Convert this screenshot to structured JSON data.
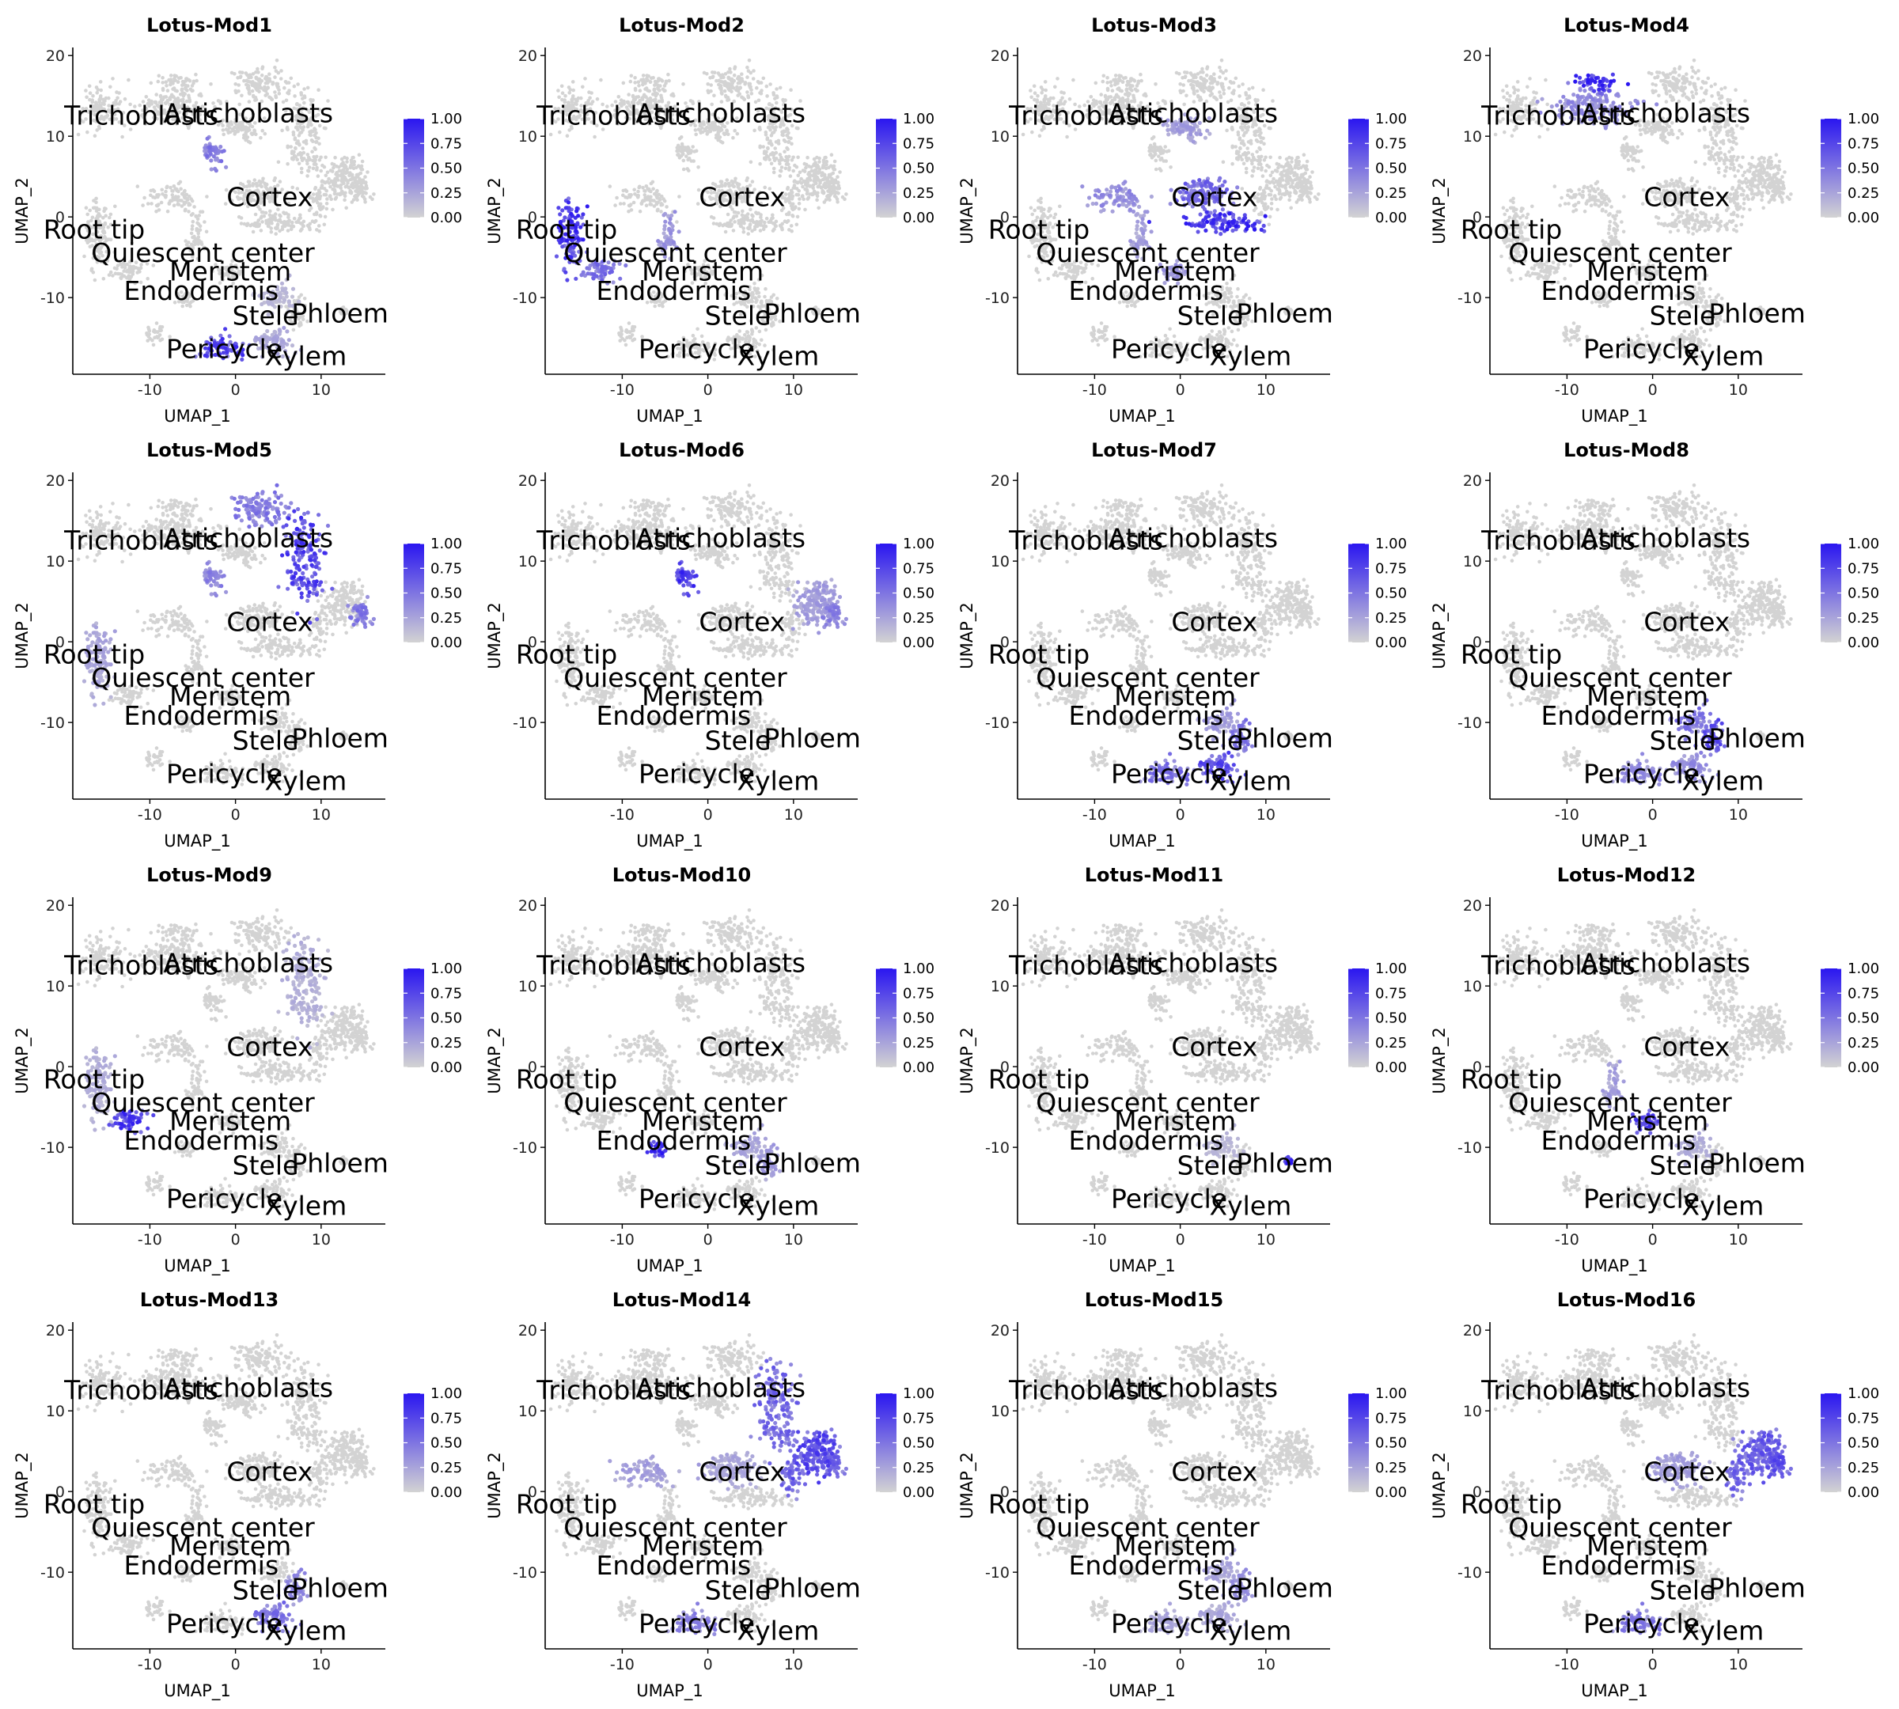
{
  "chart_data": {
    "type": "scatter",
    "layout_grid": {
      "rows": 4,
      "cols": 4
    },
    "xlabel": "UMAP_1",
    "ylabel": "UMAP_2",
    "xlim": [
      -19,
      17.5
    ],
    "ylim": [
      -19.5,
      21
    ],
    "xticks": [
      -10,
      0,
      10
    ],
    "xtick_labels": [
      "-10",
      "0",
      "10"
    ],
    "yticks": [
      -10,
      0,
      10,
      20
    ],
    "ytick_labels": [
      "-10",
      "0",
      "10",
      "20"
    ],
    "colorbar": {
      "min": 0,
      "max": 1,
      "ticks": [
        "0.00",
        "0.25",
        "0.50",
        "0.75",
        "1.00"
      ],
      "low_color": "#d3d3d3",
      "high_color": "#2a16f0"
    },
    "cluster_labels": [
      {
        "text": "Trichoblasts",
        "x": -11,
        "y": 12.5
      },
      {
        "text": "Atrichoblasts",
        "x": 1.5,
        "y": 12.8
      },
      {
        "text": "Cortex",
        "x": 4,
        "y": 2.4
      },
      {
        "text": "Root tip",
        "x": -16.5,
        "y": -1.6
      },
      {
        "text": "Quiescent center",
        "x": -3.8,
        "y": -4.5
      },
      {
        "text": "Meristem",
        "x": -0.6,
        "y": -6.8
      },
      {
        "text": "Endodermis",
        "x": -4,
        "y": -9.2
      },
      {
        "text": "Stele",
        "x": 3.5,
        "y": -12.3
      },
      {
        "text": "Phloem",
        "x": 12.2,
        "y": -12
      },
      {
        "text": "Pericycle",
        "x": -1.3,
        "y": -16.4
      },
      {
        "text": "Xylem",
        "x": 8.2,
        "y": -17.3
      }
    ],
    "clusters": [
      {
        "id": "triL",
        "cx": -15.5,
        "cy": 13.5,
        "rx": 2.6,
        "ry": 2.6,
        "n": 110
      },
      {
        "id": "triR",
        "cx": -7,
        "cy": 13.5,
        "rx": 4.5,
        "ry": 2.4,
        "n": 170
      },
      {
        "id": "tri_up",
        "cx": -6.5,
        "cy": 16.5,
        "rx": 2,
        "ry": 1.2,
        "n": 50
      },
      {
        "id": "atri_top",
        "cx": 3,
        "cy": 16.5,
        "rx": 3.5,
        "ry": 2.2,
        "n": 120
      },
      {
        "id": "atri_right",
        "cx": 8,
        "cy": 10.5,
        "rx": 2.3,
        "ry": 5.5,
        "n": 180
      },
      {
        "id": "atri_mid",
        "cx": 0.5,
        "cy": 11,
        "rx": 2.5,
        "ry": 1.6,
        "n": 90
      },
      {
        "id": "outer_right",
        "cx": 12.5,
        "cy": 5,
        "rx": 2.8,
        "ry": 2.8,
        "n": 150
      },
      {
        "id": "right_edge",
        "cx": 14.5,
        "cy": 3.5,
        "rx": 1.3,
        "ry": 1.4,
        "n": 60
      },
      {
        "id": "mid_small",
        "cx": -2.5,
        "cy": 8,
        "rx": 1.3,
        "ry": 1.8,
        "n": 50
      },
      {
        "id": "cortex",
        "cx": 3,
        "cy": 2.8,
        "rx": 3.2,
        "ry": 1.9,
        "n": 130
      },
      {
        "id": "cortex_low",
        "cx": 5,
        "cy": -0.8,
        "rx": 4.5,
        "ry": 1.2,
        "n": 110
      },
      {
        "id": "left_mid",
        "cx": -7,
        "cy": 2.3,
        "rx": 3.5,
        "ry": 1.6,
        "n": 90
      },
      {
        "id": "roottip",
        "cx": -16,
        "cy": -2,
        "rx": 1.5,
        "ry": 4.2,
        "n": 120
      },
      {
        "id": "qc",
        "cx": -12.5,
        "cy": -6.5,
        "rx": 2.3,
        "ry": 1.3,
        "n": 60
      },
      {
        "id": "center_col",
        "cx": -4.5,
        "cy": -2,
        "rx": 1,
        "ry": 2.8,
        "n": 50
      },
      {
        "id": "meristem",
        "cx": -1,
        "cy": -6.8,
        "rx": 1.6,
        "ry": 1.1,
        "n": 40
      },
      {
        "id": "endo",
        "cx": -6,
        "cy": -10.5,
        "rx": 1.1,
        "ry": 1.3,
        "n": 25
      },
      {
        "id": "stele",
        "cx": 5,
        "cy": -10,
        "rx": 2.3,
        "ry": 1.8,
        "n": 70
      },
      {
        "id": "phloem",
        "cx": 7,
        "cy": -12,
        "rx": 1.3,
        "ry": 2.2,
        "n": 50
      },
      {
        "id": "phloem_pt",
        "cx": 12.5,
        "cy": -11.8,
        "rx": 0.55,
        "ry": 0.55,
        "n": 14
      },
      {
        "id": "pericycle",
        "cx": -1.5,
        "cy": -16.3,
        "rx": 2.6,
        "ry": 1.3,
        "n": 80
      },
      {
        "id": "xylem",
        "cx": 4.5,
        "cy": -15.5,
        "rx": 2.2,
        "ry": 1.8,
        "n": 70
      },
      {
        "id": "low_small",
        "cx": -9.5,
        "cy": -14.5,
        "rx": 1.5,
        "ry": 1.2,
        "n": 30
      },
      {
        "id": "upper_right_tail",
        "cx": 10,
        "cy": 2,
        "rx": 1.2,
        "ry": 2.5,
        "n": 50
      }
    ],
    "panels": [
      {
        "title": "Lotus-Mod1",
        "highlight": {
          "pericycle": 0.8,
          "mid_small": 0.5,
          "xylem": 0.25,
          "stele": 0.15
        }
      },
      {
        "title": "Lotus-Mod2",
        "highlight": {
          "roottip": 0.85,
          "qc": 0.55,
          "center_col": 0.35
        }
      },
      {
        "title": "Lotus-Mod3",
        "highlight": {
          "cortex_low": 0.9,
          "cortex": 0.6,
          "left_mid": 0.4,
          "atri_mid": 0.3,
          "center_col": 0.3,
          "meristem": 0.35
        }
      },
      {
        "title": "Lotus-Mod4",
        "highlight": {
          "tri_up": 0.95,
          "triR": 0.4
        }
      },
      {
        "title": "Lotus-Mod5",
        "highlight": {
          "atri_right": 0.8,
          "atri_top": 0.5,
          "right_edge": 0.5,
          "mid_small": 0.45,
          "roottip": 0.25
        }
      },
      {
        "title": "Lotus-Mod6",
        "highlight": {
          "mid_small": 0.85,
          "outer_right": 0.3,
          "right_edge": 0.45
        }
      },
      {
        "title": "Lotus-Mod7",
        "highlight": {
          "xylem": 0.75,
          "pericycle": 0.55,
          "phloem": 0.5,
          "stele": 0.3
        }
      },
      {
        "title": "Lotus-Mod8",
        "highlight": {
          "phloem": 0.7,
          "stele": 0.5,
          "pericycle": 0.4,
          "xylem": 0.4
        }
      },
      {
        "title": "Lotus-Mod9",
        "highlight": {
          "qc": 0.85,
          "atri_right": 0.2,
          "roottip": 0.2
        }
      },
      {
        "title": "Lotus-Mod10",
        "highlight": {
          "endo": 0.9,
          "stele": 0.25,
          "phloem": 0.3
        }
      },
      {
        "title": "Lotus-Mod11",
        "highlight": {
          "phloem_pt": 1.0,
          "stele": 0.15
        }
      },
      {
        "title": "Lotus-Mod12",
        "highlight": {
          "meristem": 0.8,
          "center_col": 0.3,
          "stele": 0.2
        }
      },
      {
        "title": "Lotus-Mod13",
        "highlight": {
          "xylem": 0.55,
          "phloem": 0.4
        }
      },
      {
        "title": "Lotus-Mod14",
        "highlight": {
          "outer_right": 0.75,
          "atri_right": 0.6,
          "upper_right_tail": 0.6,
          "right_edge": 0.6,
          "cortex": 0.25,
          "pericycle": 0.45,
          "left_mid": 0.3
        }
      },
      {
        "title": "Lotus-Mod15",
        "highlight": {
          "phloem": 0.35,
          "stele": 0.25,
          "pericycle": 0.25,
          "xylem": 0.25
        }
      },
      {
        "title": "Lotus-Mod16",
        "highlight": {
          "outer_right": 0.65,
          "right_edge": 0.7,
          "upper_right_tail": 0.6,
          "pericycle": 0.5,
          "cortex": 0.3
        }
      }
    ]
  }
}
